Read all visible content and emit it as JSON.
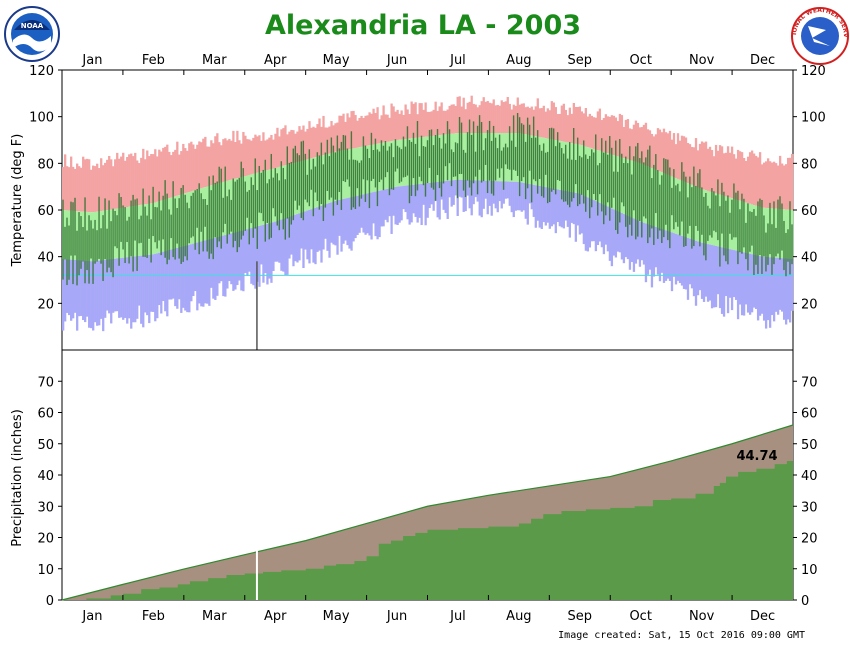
{
  "title": "Alexandria LA - 2003",
  "footer": "Image created: Sat, 15 Oct 2016 09:00 GMT",
  "logos": {
    "left": {
      "icon": "noaa-logo",
      "text": "NOAA"
    },
    "right": {
      "icon": "nws-logo",
      "text": "NATIONAL WEATHER SERVICE"
    }
  },
  "colors": {
    "title": "#1a8a1a",
    "record_band": "#f4a3a3",
    "normal_band": "#a8f0a0",
    "record_low_band": "#a8a8f8",
    "observed_bar": "#2e6e2e",
    "normal_precip": "#a89080",
    "observed_precip": "#5a9a48",
    "freezing_line": "#40e0e0"
  },
  "chart_data": [
    {
      "type": "bar",
      "name": "temperature",
      "year": 2003,
      "ylabel": "Temperature (deg F)",
      "ylim": [
        0,
        120
      ],
      "yticks": [
        20,
        40,
        60,
        80,
        100,
        120
      ],
      "months": [
        "Jan",
        "Feb",
        "Mar",
        "Apr",
        "May",
        "Jun",
        "Jul",
        "Aug",
        "Sep",
        "Oct",
        "Nov",
        "Dec"
      ],
      "freezing_line": 32,
      "normal_high_monthly": [
        59,
        63,
        71,
        78,
        85,
        90,
        93,
        93,
        88,
        80,
        69,
        61
      ],
      "normal_low_monthly": [
        38,
        41,
        48,
        55,
        64,
        70,
        73,
        72,
        67,
        55,
        46,
        40
      ],
      "record_high_monthly": [
        80,
        84,
        90,
        93,
        99,
        103,
        106,
        106,
        103,
        96,
        87,
        82
      ],
      "record_low_monthly": [
        12,
        15,
        24,
        34,
        45,
        55,
        62,
        60,
        48,
        34,
        22,
        14
      ],
      "observed_high_monthly": [
        58,
        64,
        70,
        78,
        87,
        90,
        92,
        94,
        87,
        82,
        70,
        58
      ],
      "observed_low_monthly": [
        35,
        43,
        46,
        53,
        66,
        70,
        73,
        72,
        65,
        53,
        47,
        36
      ],
      "missing_day_marker_month": 3.2
    },
    {
      "type": "area",
      "name": "precipitation",
      "ylabel": "Precipitation (inches)",
      "ylim": [
        0,
        80
      ],
      "yticks": [
        0,
        10,
        20,
        30,
        40,
        50,
        60,
        70
      ],
      "months": [
        "Jan",
        "Feb",
        "Mar",
        "Apr",
        "May",
        "Jun",
        "Jul",
        "Aug",
        "Sep",
        "Oct",
        "Nov",
        "Dec"
      ],
      "normal_cumulative_monthend": [
        0,
        5.0,
        9.9,
        14.5,
        19.0,
        24.5,
        30.0,
        33.5,
        36.5,
        39.5,
        44.5,
        50.0,
        56.0
      ],
      "observed_cumulative_steps": [
        [
          0,
          0
        ],
        [
          0.4,
          0.5
        ],
        [
          0.8,
          1.5
        ],
        [
          1.0,
          2.0
        ],
        [
          1.3,
          3.5
        ],
        [
          1.6,
          4.0
        ],
        [
          1.9,
          5.0
        ],
        [
          2.1,
          6.0
        ],
        [
          2.4,
          7.0
        ],
        [
          2.7,
          8.0
        ],
        [
          3.0,
          8.5
        ],
        [
          3.3,
          9.0
        ],
        [
          3.6,
          9.5
        ],
        [
          4.0,
          10.0
        ],
        [
          4.3,
          11.0
        ],
        [
          4.5,
          11.5
        ],
        [
          4.8,
          12.5
        ],
        [
          5.0,
          14.0
        ],
        [
          5.2,
          18.0
        ],
        [
          5.4,
          19.0
        ],
        [
          5.6,
          20.5
        ],
        [
          5.8,
          21.5
        ],
        [
          6.0,
          22.5
        ],
        [
          6.5,
          23.0
        ],
        [
          7.0,
          23.5
        ],
        [
          7.5,
          24.5
        ],
        [
          7.7,
          26.0
        ],
        [
          7.9,
          27.5
        ],
        [
          8.2,
          28.5
        ],
        [
          8.6,
          29.0
        ],
        [
          9.0,
          29.5
        ],
        [
          9.4,
          30.0
        ],
        [
          9.7,
          32.0
        ],
        [
          10.0,
          32.5
        ],
        [
          10.4,
          34.0
        ],
        [
          10.7,
          36.5
        ],
        [
          10.8,
          37.5
        ],
        [
          10.9,
          39.5
        ],
        [
          11.1,
          41.0
        ],
        [
          11.4,
          42.0
        ],
        [
          11.7,
          43.5
        ],
        [
          11.9,
          44.5
        ],
        [
          12.0,
          44.74
        ]
      ],
      "total_label": "44.74",
      "missing_day_marker_month": 3.2
    }
  ]
}
